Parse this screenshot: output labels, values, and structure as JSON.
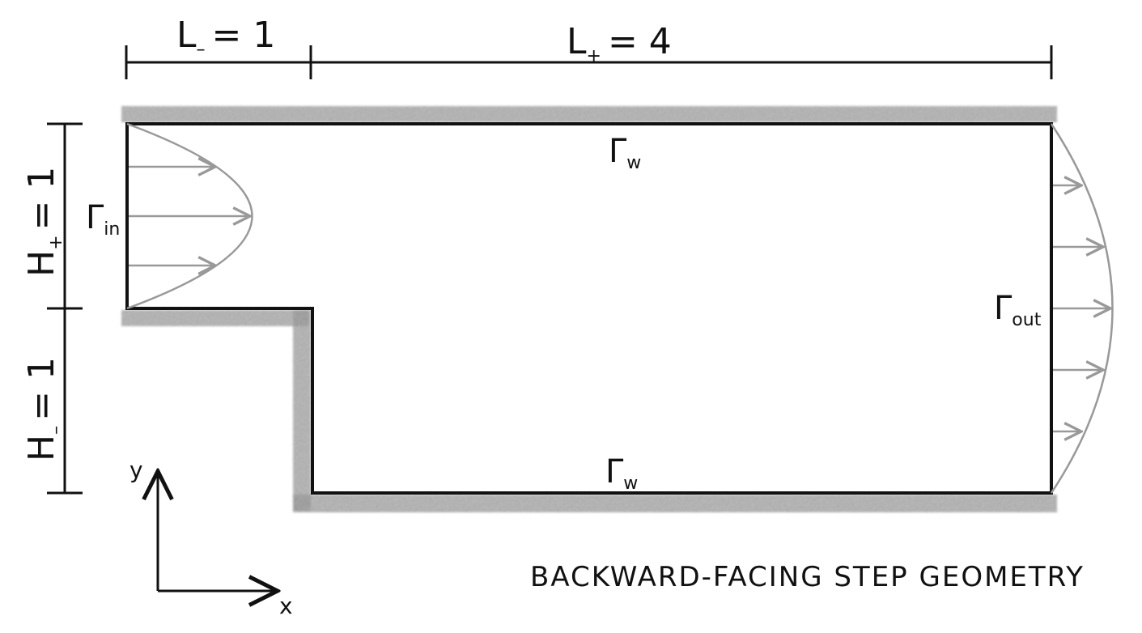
{
  "dimensions": {
    "l_minus": {
      "symbol": "L",
      "sub": "–",
      "value": "= 1"
    },
    "l_plus": {
      "symbol": "L",
      "sub": "+",
      "value": "= 4"
    },
    "h_plus": {
      "symbol": "H",
      "sub": "+",
      "value": "= 1"
    },
    "h_minus": {
      "symbol": "H",
      "sub": "–",
      "value": "= 1"
    }
  },
  "boundaries": {
    "inlet": {
      "symbol": "Γ",
      "sub": "in"
    },
    "outlet": {
      "symbol": "Γ",
      "sub": "out"
    },
    "wall_top": {
      "symbol": "Γ",
      "sub": "w"
    },
    "wall_bottom": {
      "symbol": "Γ",
      "sub": "w"
    }
  },
  "axes": {
    "x_label": "x",
    "y_label": "y"
  },
  "caption": "BACKWARD-FACING STEP GEOMETRY",
  "colors": {
    "outline": "#111111",
    "profile": "#999999",
    "wall_hatch": "#8a8a8a"
  }
}
